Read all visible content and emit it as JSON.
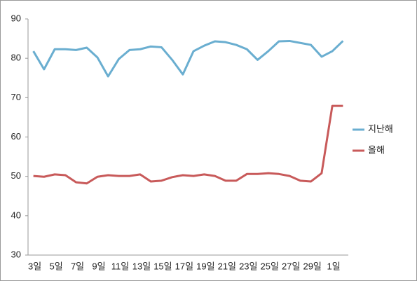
{
  "chart_data": {
    "type": "line",
    "categories": [
      "3일",
      null,
      "5일",
      null,
      "7일",
      null,
      "9일",
      null,
      "11일",
      null,
      "13일",
      null,
      "15일",
      null,
      "17일",
      null,
      "19일",
      null,
      "21일",
      null,
      "23일",
      null,
      "25일",
      null,
      "27일",
      null,
      "29일",
      null,
      "1일",
      null
    ],
    "series": [
      {
        "name": "지난해",
        "color": "#6aaed0",
        "values": [
          81.8,
          77.2,
          82.3,
          82.3,
          82.1,
          82.7,
          80.2,
          75.4,
          79.8,
          82.1,
          82.3,
          83.0,
          82.8,
          79.6,
          75.9,
          81.8,
          83.2,
          84.3,
          84.1,
          83.4,
          82.3,
          79.6,
          81.8,
          84.3,
          84.4,
          83.9,
          83.4,
          80.4,
          81.8,
          84.4
        ]
      },
      {
        "name": "올해",
        "color": "#c85a5a",
        "values": [
          50.1,
          49.9,
          50.5,
          50.3,
          48.5,
          48.2,
          49.9,
          50.3,
          50.1,
          50.1,
          50.5,
          48.7,
          48.9,
          49.8,
          50.3,
          50.1,
          50.5,
          50.1,
          48.9,
          48.9,
          50.6,
          50.6,
          50.8,
          50.6,
          50.1,
          48.9,
          48.7,
          50.8,
          67.9,
          67.9
        ]
      }
    ],
    "ylim": [
      30,
      90
    ],
    "yticks": [
      30,
      40,
      50,
      60,
      70,
      80,
      90
    ],
    "legend": "right"
  }
}
